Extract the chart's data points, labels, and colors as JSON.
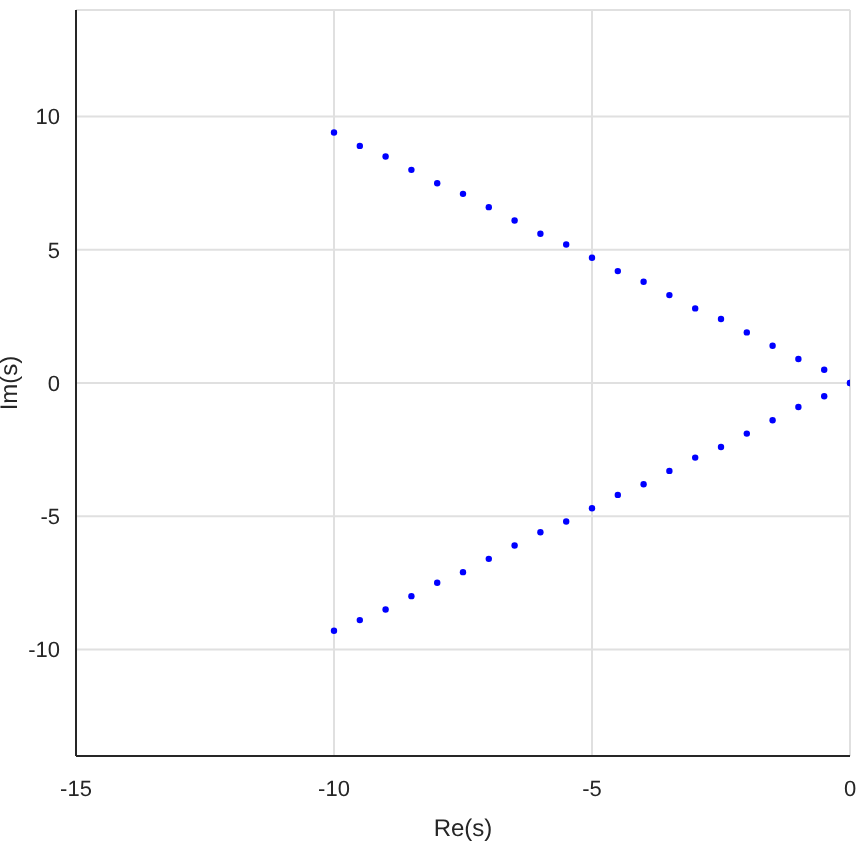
{
  "chart_data": {
    "type": "scatter",
    "xlabel": "Re(s)",
    "ylabel": "Im(s)",
    "xlim": [
      -15,
      0
    ],
    "ylim": [
      -14,
      14
    ],
    "xticks": [
      -15,
      -10,
      -5,
      0
    ],
    "yticks": [
      -10,
      -5,
      0,
      5,
      10
    ],
    "grid": true,
    "marker": "circle",
    "legend": false,
    "series": [
      {
        "color": "#0000ff",
        "x": [
          -10,
          -9.5,
          -9,
          -8.5,
          -8,
          -7.5,
          -7,
          -6.5,
          -6,
          -5.5,
          -5,
          -4.5,
          -4,
          -3.5,
          -3,
          -2.5,
          -2,
          -1.5,
          -1,
          -0.5,
          0
        ],
        "values": [
          9.4,
          8.9,
          8.5,
          8.0,
          7.5,
          7.1,
          6.6,
          6.1,
          5.6,
          5.2,
          4.7,
          4.2,
          3.8,
          3.3,
          2.8,
          2.4,
          1.9,
          1.4,
          0.9,
          0.5,
          0
        ]
      },
      {
        "color": "#0000ff",
        "x": [
          -10,
          -9.5,
          -9,
          -8.5,
          -8,
          -7.5,
          -7,
          -6.5,
          -6,
          -5.5,
          -5,
          -4.5,
          -4,
          -3.5,
          -3,
          -2.5,
          -2,
          -1.5,
          -1,
          -0.5,
          0
        ],
        "values": [
          -9.3,
          -8.9,
          -8.5,
          -8.0,
          -7.5,
          -7.1,
          -6.6,
          -6.1,
          -5.6,
          -5.2,
          -4.7,
          -4.2,
          -3.8,
          -3.3,
          -2.8,
          -2.4,
          -1.9,
          -1.4,
          -0.9,
          -0.5,
          0
        ]
      }
    ]
  }
}
